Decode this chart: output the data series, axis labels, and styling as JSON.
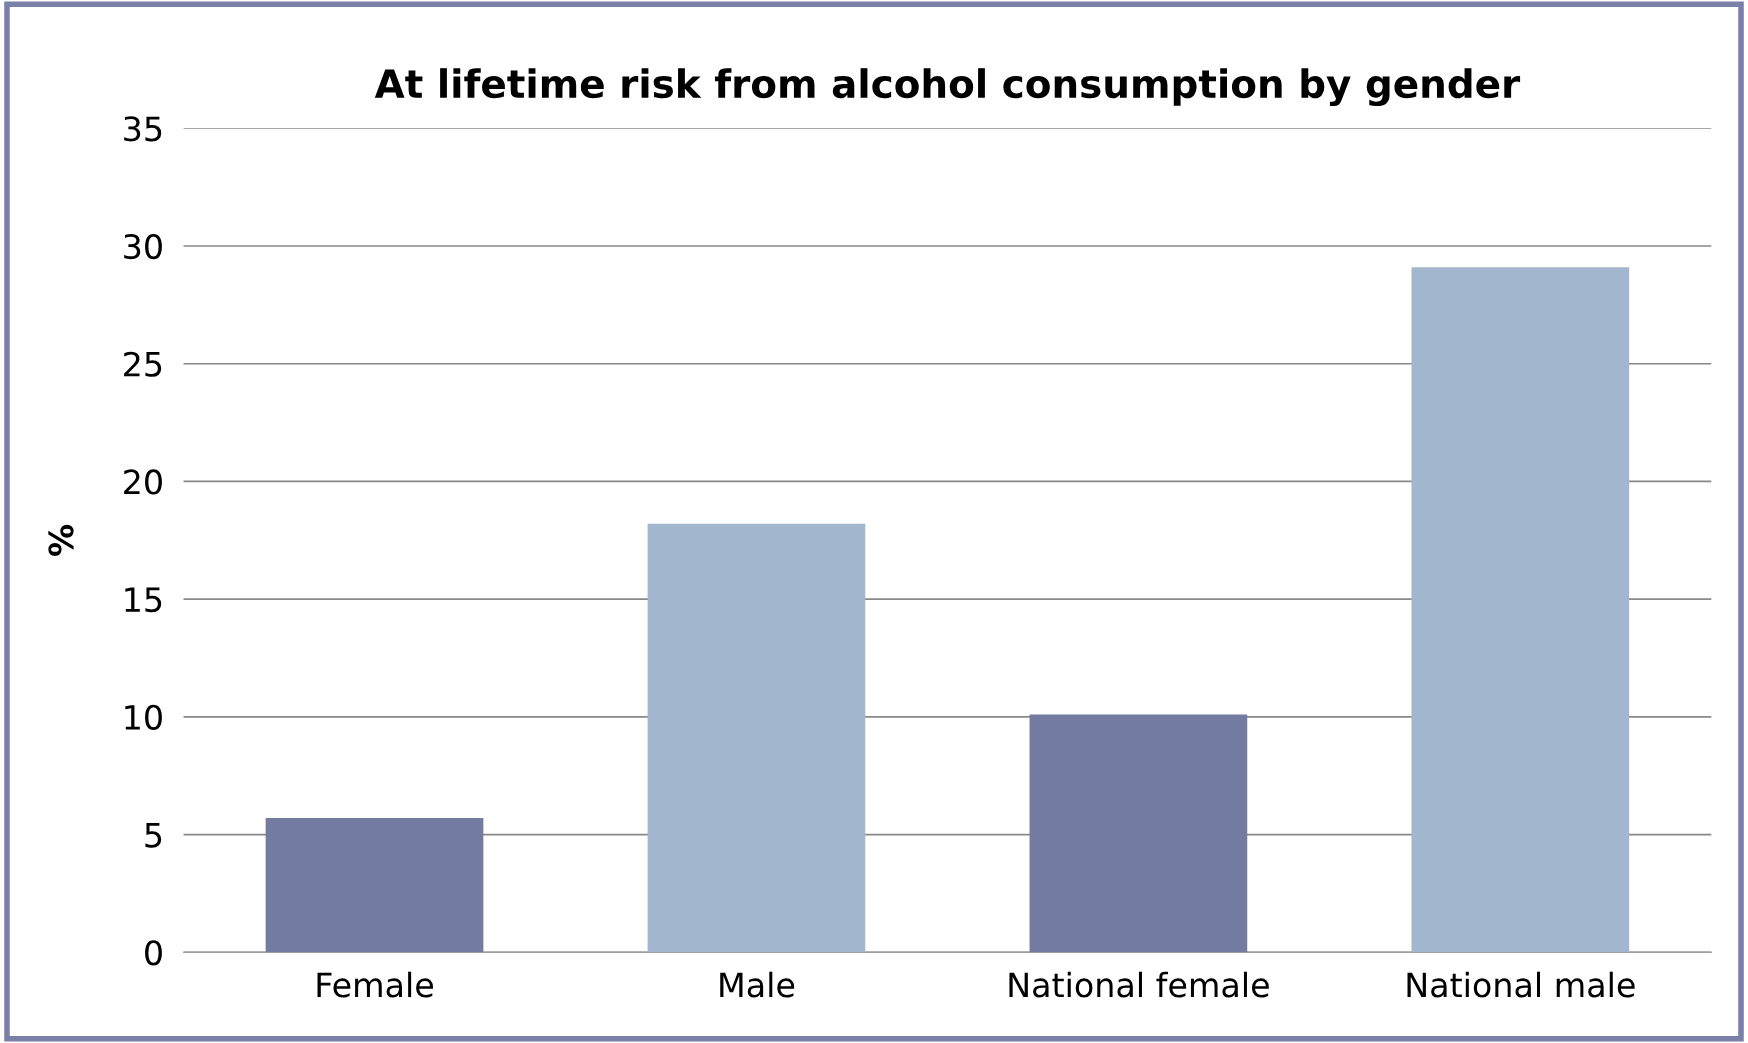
{
  "chart_data": {
    "type": "bar",
    "title": "At lifetime risk from alcohol consumption by gender",
    "ylabel": "%",
    "categories": [
      "Female",
      "Male",
      "National female",
      "National male"
    ],
    "values": [
      5.7,
      18.2,
      10.1,
      29.1
    ],
    "colors": [
      "#737ba1",
      "#a2b7ce",
      "#737ba1",
      "#a2b7ce"
    ],
    "ylim": [
      0,
      35
    ],
    "yticks": [
      0,
      5,
      10,
      15,
      20,
      25,
      30,
      35
    ],
    "grid": "y"
  }
}
